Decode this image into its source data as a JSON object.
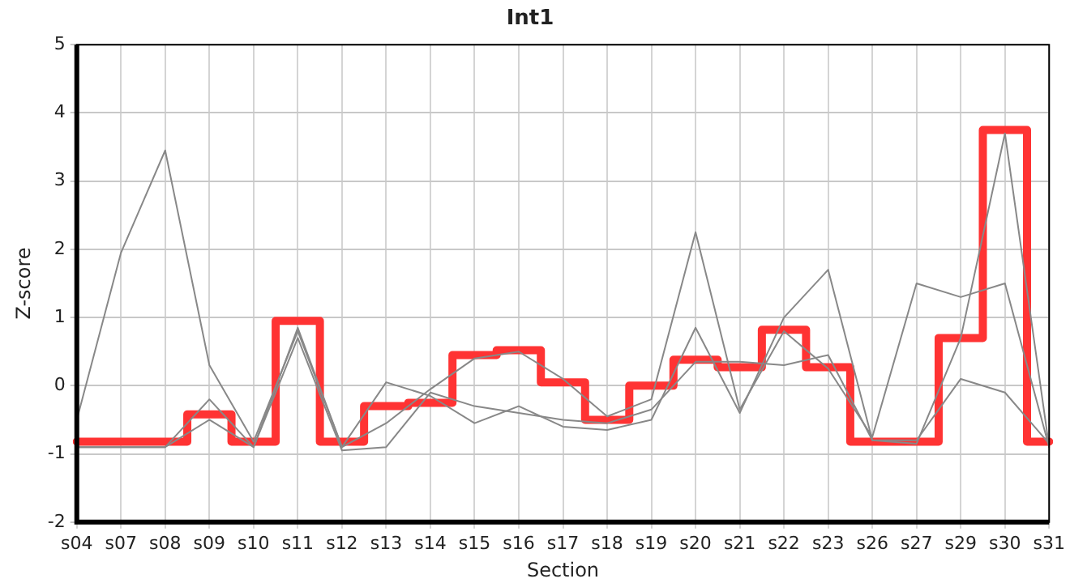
{
  "chart_data": {
    "type": "line",
    "title": "Int1",
    "xlabel": "Section",
    "ylabel": "Z-score",
    "categories": [
      "s04",
      "s07",
      "s08",
      "s09",
      "s10",
      "s11",
      "s12",
      "s13",
      "s14",
      "s15",
      "s16",
      "s17",
      "s18",
      "s19",
      "s20",
      "s21",
      "s22",
      "s23",
      "s26",
      "s27",
      "s29",
      "s30",
      "s31"
    ],
    "series": [
      {
        "color": "#888888",
        "values": [
          -0.5,
          1.95,
          3.45,
          0.3,
          -0.82,
          0.8,
          -0.9,
          -0.55,
          -0.05,
          0.4,
          0.5,
          0.1,
          -0.45,
          -0.2,
          2.25,
          -0.35,
          0.8,
          0.25,
          -0.75,
          1.5,
          1.3,
          1.5,
          -0.9
        ]
      },
      {
        "color": "#888888",
        "values": [
          -0.9,
          -0.9,
          -0.9,
          -0.2,
          -0.9,
          0.85,
          -0.9,
          0.05,
          -0.15,
          -0.55,
          -0.3,
          -0.6,
          -0.65,
          -0.5,
          0.85,
          -0.4,
          1.0,
          1.7,
          -0.8,
          -0.85,
          0.7,
          3.7,
          -0.9
        ]
      },
      {
        "color": "#888888",
        "values": [
          -0.9,
          -0.9,
          -0.9,
          -0.5,
          -0.9,
          0.7,
          -0.95,
          -0.9,
          -0.1,
          -0.3,
          -0.4,
          -0.5,
          -0.55,
          -0.35,
          0.35,
          0.35,
          0.3,
          0.45,
          -0.8,
          -0.8,
          0.1,
          -0.1,
          -0.85
        ]
      },
      {
        "type": "step",
        "color": "#ff3333",
        "values": [
          -0.82,
          -0.82,
          -0.82,
          -0.42,
          -0.82,
          0.95,
          -0.82,
          -0.3,
          -0.25,
          0.45,
          0.52,
          0.05,
          -0.5,
          0.0,
          0.38,
          0.27,
          0.82,
          0.27,
          -0.82,
          -0.82,
          0.7,
          3.75,
          -0.82
        ]
      }
    ],
    "ylim": [
      -2,
      5
    ],
    "yticks": [
      -2,
      -1,
      0,
      1,
      2,
      3,
      4,
      5
    ],
    "grid": true,
    "legend": false,
    "marker": "none",
    "line_style": "solid"
  }
}
